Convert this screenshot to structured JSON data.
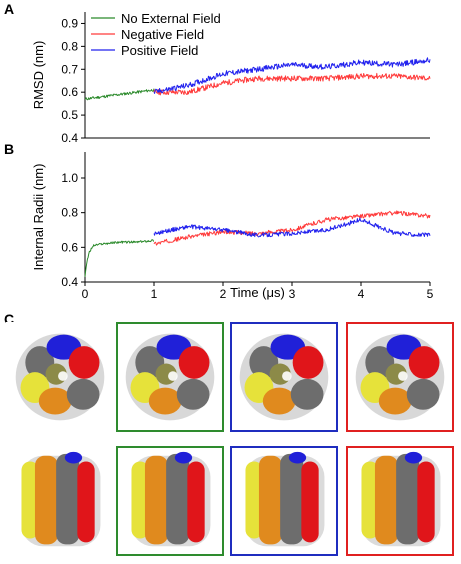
{
  "panels": {
    "a_label": "A",
    "b_label": "B",
    "c_label": "C"
  },
  "colors": {
    "no_field": "#2b8a2b",
    "negative": "#ff3b3b",
    "positive": "#2222ee",
    "frame_no_field": "#2e8b2e",
    "frame_positive": "#1f2dbf",
    "frame_negative": "#e02020"
  },
  "chart_data": [
    {
      "type": "line",
      "panel": "A",
      "ylabel": "RMSD (nm)",
      "xlabel": "",
      "xlim": [
        0,
        5
      ],
      "ylim": [
        0.4,
        0.95
      ],
      "yticks": [
        "0.4",
        "0.5",
        "0.6",
        "0.7",
        "0.8",
        "0.9"
      ],
      "xticks": [],
      "legend_position": "top-left",
      "series": [
        {
          "name": "No External Field",
          "color": "#2b8a2b",
          "x": [
            0,
            0.25,
            0.5,
            0.75,
            1.0
          ],
          "values": [
            0.57,
            0.58,
            0.59,
            0.6,
            0.61
          ]
        },
        {
          "name": "Negative Field",
          "color": "#ff3b3b",
          "x": [
            1.0,
            1.5,
            2.0,
            2.5,
            3.0,
            3.5,
            4.0,
            4.5,
            5.0
          ],
          "values": [
            0.6,
            0.6,
            0.64,
            0.66,
            0.66,
            0.66,
            0.67,
            0.67,
            0.66
          ]
        },
        {
          "name": "Positive Field",
          "color": "#2222ee",
          "x": [
            1.0,
            1.5,
            2.0,
            2.5,
            3.0,
            3.5,
            4.0,
            4.5,
            5.0
          ],
          "values": [
            0.6,
            0.63,
            0.68,
            0.7,
            0.72,
            0.71,
            0.73,
            0.72,
            0.74
          ]
        }
      ]
    },
    {
      "type": "line",
      "panel": "B",
      "ylabel": "Internal Radii (nm)",
      "xlabel": "Time (μs)",
      "xlim": [
        0,
        5
      ],
      "ylim": [
        0.4,
        1.15
      ],
      "yticks": [
        "0.4",
        "0.6",
        "0.8",
        "1.0"
      ],
      "xticks": [
        "0",
        "1",
        "2",
        "3",
        "4",
        "5"
      ],
      "series": [
        {
          "name": "No External Field",
          "color": "#2b8a2b",
          "x": [
            0,
            0.02,
            0.06,
            0.12,
            0.25,
            0.5,
            0.75,
            1.0
          ],
          "values": [
            0.43,
            0.5,
            0.57,
            0.61,
            0.62,
            0.63,
            0.63,
            0.64
          ]
        },
        {
          "name": "Negative Field",
          "color": "#ff3b3b",
          "x": [
            1.0,
            1.5,
            2.0,
            2.5,
            3.0,
            3.5,
            4.0,
            4.5,
            5.0
          ],
          "values": [
            0.62,
            0.66,
            0.69,
            0.68,
            0.7,
            0.76,
            0.78,
            0.8,
            0.78
          ]
        },
        {
          "name": "Positive Field",
          "color": "#2222ee",
          "x": [
            1.0,
            1.5,
            2.0,
            2.5,
            3.0,
            3.5,
            4.0,
            4.5,
            5.0
          ],
          "values": [
            0.68,
            0.72,
            0.7,
            0.67,
            0.68,
            0.7,
            0.76,
            0.68,
            0.67
          ]
        }
      ]
    }
  ],
  "renders": {
    "top_row": [
      {
        "id": "top-initial",
        "frame": "none"
      },
      {
        "id": "top-no-field",
        "frame": "#2e8b2e"
      },
      {
        "id": "top-positive",
        "frame": "#1f2dbf"
      },
      {
        "id": "top-negative",
        "frame": "#e02020"
      }
    ],
    "bottom_row": [
      {
        "id": "bottom-initial",
        "frame": "none"
      },
      {
        "id": "bottom-no-field",
        "frame": "#2e8b2e"
      },
      {
        "id": "bottom-positive",
        "frame": "#1f2dbf"
      },
      {
        "id": "bottom-negative",
        "frame": "#e02020"
      }
    ]
  }
}
